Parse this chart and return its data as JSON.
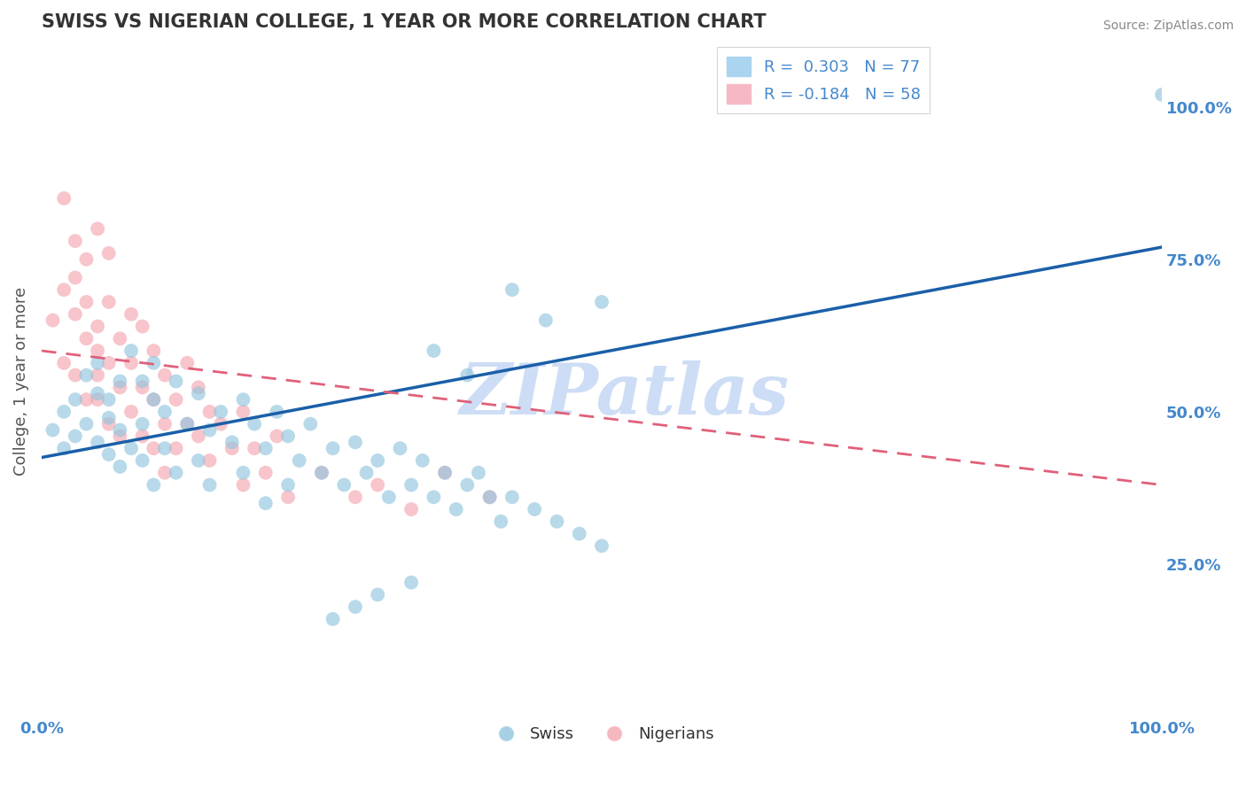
{
  "title": "SWISS VS NIGERIAN COLLEGE, 1 YEAR OR MORE CORRELATION CHART",
  "source": "Source: ZipAtlas.com",
  "ylabel": "College, 1 year or more",
  "xlim": [
    0.0,
    1.0
  ],
  "ylim": [
    0.0,
    1.1
  ],
  "ytick_positions": [
    0.25,
    0.5,
    0.75,
    1.0
  ],
  "ytick_labels": [
    "25.0%",
    "50.0%",
    "75.0%",
    "100.0%"
  ],
  "swiss_color": "#92c5de",
  "nigerian_color": "#f4a6b0",
  "swiss_line_color": "#1a5fa8",
  "nigerian_line_color": "#e0607a",
  "R_swiss": 0.303,
  "N_swiss": 77,
  "R_nigerian": -0.184,
  "N_nigerian": 58,
  "legend_swiss_label": "Swiss",
  "legend_nigerian_label": "Nigerians",
  "watermark": "ZIPatlas",
  "watermark_color": "#c8daf5",
  "background_color": "#ffffff",
  "grid_color": "#cccccc",
  "title_color": "#333333",
  "axis_label_color": "#555555",
  "tick_label_color": "#4488cc",
  "swiss_line_y0": 0.425,
  "swiss_line_y1": 0.77,
  "nigerian_line_y0": 0.6,
  "nigerian_line_y1": 0.38,
  "swiss_scatter_x": [
    0.01,
    0.02,
    0.02,
    0.03,
    0.03,
    0.04,
    0.04,
    0.05,
    0.05,
    0.05,
    0.06,
    0.06,
    0.06,
    0.07,
    0.07,
    0.07,
    0.08,
    0.08,
    0.09,
    0.09,
    0.09,
    0.1,
    0.1,
    0.1,
    0.11,
    0.11,
    0.12,
    0.12,
    0.13,
    0.14,
    0.14,
    0.15,
    0.15,
    0.16,
    0.17,
    0.18,
    0.18,
    0.19,
    0.2,
    0.2,
    0.21,
    0.22,
    0.22,
    0.23,
    0.24,
    0.25,
    0.26,
    0.27,
    0.28,
    0.29,
    0.3,
    0.31,
    0.32,
    0.33,
    0.34,
    0.35,
    0.36,
    0.37,
    0.38,
    0.39,
    0.4,
    0.41,
    0.42,
    0.44,
    0.46,
    0.48,
    0.5,
    0.35,
    0.38,
    0.42,
    0.45,
    0.5,
    0.33,
    0.3,
    0.28,
    0.26,
    1.0
  ],
  "swiss_scatter_y": [
    0.47,
    0.5,
    0.44,
    0.52,
    0.46,
    0.56,
    0.48,
    0.53,
    0.45,
    0.58,
    0.49,
    0.43,
    0.52,
    0.55,
    0.47,
    0.41,
    0.6,
    0.44,
    0.55,
    0.48,
    0.42,
    0.58,
    0.52,
    0.38,
    0.5,
    0.44,
    0.55,
    0.4,
    0.48,
    0.53,
    0.42,
    0.47,
    0.38,
    0.5,
    0.45,
    0.52,
    0.4,
    0.48,
    0.44,
    0.35,
    0.5,
    0.46,
    0.38,
    0.42,
    0.48,
    0.4,
    0.44,
    0.38,
    0.45,
    0.4,
    0.42,
    0.36,
    0.44,
    0.38,
    0.42,
    0.36,
    0.4,
    0.34,
    0.38,
    0.4,
    0.36,
    0.32,
    0.36,
    0.34,
    0.32,
    0.3,
    0.28,
    0.6,
    0.56,
    0.7,
    0.65,
    0.68,
    0.22,
    0.2,
    0.18,
    0.16,
    1.02
  ],
  "nigerian_scatter_x": [
    0.01,
    0.02,
    0.02,
    0.03,
    0.03,
    0.03,
    0.04,
    0.04,
    0.04,
    0.05,
    0.05,
    0.05,
    0.05,
    0.06,
    0.06,
    0.06,
    0.07,
    0.07,
    0.07,
    0.08,
    0.08,
    0.08,
    0.09,
    0.09,
    0.09,
    0.1,
    0.1,
    0.1,
    0.11,
    0.11,
    0.11,
    0.12,
    0.12,
    0.13,
    0.13,
    0.14,
    0.14,
    0.15,
    0.15,
    0.16,
    0.17,
    0.18,
    0.18,
    0.19,
    0.2,
    0.21,
    0.22,
    0.25,
    0.28,
    0.3,
    0.33,
    0.36,
    0.4,
    0.02,
    0.03,
    0.04,
    0.05,
    0.06
  ],
  "nigerian_scatter_y": [
    0.65,
    0.7,
    0.58,
    0.66,
    0.56,
    0.72,
    0.62,
    0.52,
    0.68,
    0.6,
    0.52,
    0.64,
    0.56,
    0.58,
    0.68,
    0.48,
    0.62,
    0.54,
    0.46,
    0.66,
    0.5,
    0.58,
    0.64,
    0.54,
    0.46,
    0.6,
    0.52,
    0.44,
    0.56,
    0.48,
    0.4,
    0.52,
    0.44,
    0.58,
    0.48,
    0.54,
    0.46,
    0.5,
    0.42,
    0.48,
    0.44,
    0.5,
    0.38,
    0.44,
    0.4,
    0.46,
    0.36,
    0.4,
    0.36,
    0.38,
    0.34,
    0.4,
    0.36,
    0.85,
    0.78,
    0.75,
    0.8,
    0.76
  ]
}
